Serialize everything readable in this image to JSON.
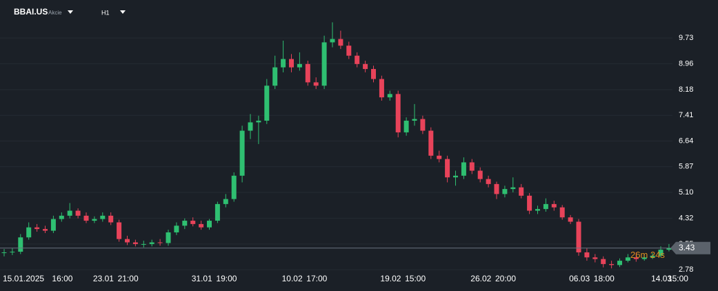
{
  "header": {
    "symbol": "BBAI.US",
    "market": "Akcie",
    "timeframe": "H1"
  },
  "chart_data": {
    "type": "candlestick",
    "categories": [
      "15.01.2025",
      null,
      null,
      null,
      null,
      null,
      "16:00",
      null,
      null,
      null,
      null,
      "23.01",
      null,
      null,
      "21:00",
      null,
      null,
      null,
      null,
      null,
      null,
      null,
      null,
      "31.01",
      null,
      null,
      "19:00",
      null,
      null,
      null,
      null,
      null,
      null,
      null,
      "10.02",
      null,
      null,
      "17:00",
      null,
      null,
      null,
      null,
      null,
      null,
      null,
      null,
      "19.02",
      null,
      null,
      "15:00",
      null,
      null,
      null,
      null,
      null,
      null,
      null,
      "26.02",
      null,
      null,
      "20:00",
      null,
      null,
      null,
      null,
      null,
      null,
      null,
      null,
      "06.03",
      null,
      null,
      "18:00",
      null,
      null,
      null,
      null,
      null,
      null,
      "14.03",
      null,
      "15:00"
    ],
    "open": [
      3.28,
      3.3,
      3.32,
      3.75,
      4.05,
      4.0,
      3.95,
      4.3,
      4.4,
      4.55,
      4.4,
      4.25,
      4.3,
      4.4,
      4.2,
      3.7,
      3.6,
      3.55,
      3.55,
      3.6,
      3.58,
      3.9,
      4.1,
      4.25,
      4.15,
      4.05,
      4.25,
      4.75,
      4.9,
      5.6,
      6.95,
      7.2,
      7.25,
      8.3,
      8.85,
      9.1,
      8.85,
      8.95,
      8.4,
      8.3,
      9.6,
      9.7,
      9.5,
      9.2,
      8.95,
      8.8,
      8.5,
      7.95,
      8.05,
      6.9,
      7.25,
      7.3,
      6.95,
      6.2,
      6.1,
      5.55,
      5.6,
      6.0,
      5.75,
      5.5,
      5.35,
      5.05,
      5.2,
      5.25,
      5.0,
      4.55,
      4.6,
      4.75,
      4.65,
      4.35,
      4.22,
      3.3,
      3.15,
      3.1,
      2.95,
      2.92,
      3.05,
      3.15,
      3.1,
      3.15,
      3.2,
      3.38
    ],
    "high": [
      3.4,
      3.42,
      3.85,
      4.2,
      4.15,
      4.1,
      4.4,
      4.5,
      4.78,
      4.62,
      4.5,
      4.38,
      4.5,
      4.5,
      4.28,
      3.8,
      3.68,
      3.65,
      3.68,
      3.7,
      3.98,
      4.2,
      4.32,
      4.35,
      4.25,
      4.3,
      4.82,
      5.05,
      5.7,
      7.1,
      7.45,
      7.4,
      8.5,
      9.2,
      9.65,
      9.25,
      9.3,
      9.05,
      8.55,
      9.8,
      10.2,
      9.95,
      9.62,
      9.3,
      9.05,
      8.9,
      8.6,
      8.15,
      8.15,
      7.35,
      7.75,
      7.4,
      7.05,
      6.35,
      6.2,
      5.75,
      6.15,
      6.1,
      5.85,
      5.6,
      5.42,
      5.3,
      5.55,
      5.35,
      5.08,
      4.7,
      4.92,
      4.85,
      4.72,
      4.42,
      4.3,
      3.42,
      3.25,
      3.18,
      3.05,
      3.12,
      3.25,
      3.3,
      3.25,
      3.28,
      3.48,
      3.55
    ],
    "low": [
      3.18,
      3.22,
      3.25,
      3.68,
      3.92,
      3.88,
      3.88,
      4.22,
      4.32,
      4.32,
      4.18,
      4.18,
      4.22,
      4.12,
      3.62,
      3.52,
      3.48,
      3.45,
      3.48,
      3.5,
      3.5,
      3.82,
      4.0,
      4.08,
      3.98,
      3.98,
      4.18,
      4.65,
      4.82,
      5.4,
      6.7,
      6.55,
      7.15,
      8.2,
      8.7,
      8.7,
      8.75,
      8.3,
      8.2,
      8.2,
      9.45,
      9.4,
      9.1,
      8.85,
      8.7,
      8.4,
      7.85,
      7.85,
      6.75,
      6.8,
      7.1,
      6.85,
      6.1,
      6.0,
      5.4,
      5.3,
      5.5,
      5.65,
      5.4,
      5.25,
      4.9,
      4.95,
      5.1,
      4.92,
      4.45,
      4.45,
      4.52,
      4.55,
      4.28,
      4.15,
      3.2,
      3.05,
      3.0,
      2.85,
      2.82,
      2.86,
      3.0,
      3.02,
      3.05,
      3.1,
      3.15,
      3.33
    ],
    "close": [
      3.3,
      3.32,
      3.75,
      4.05,
      4.0,
      3.95,
      4.3,
      4.4,
      4.55,
      4.4,
      4.25,
      4.3,
      4.4,
      4.2,
      3.7,
      3.6,
      3.55,
      3.55,
      3.6,
      3.58,
      3.9,
      4.1,
      4.25,
      4.15,
      4.05,
      4.25,
      4.75,
      4.9,
      5.6,
      6.95,
      7.2,
      7.25,
      8.3,
      8.85,
      9.1,
      8.85,
      8.95,
      8.4,
      8.3,
      9.6,
      9.7,
      9.5,
      9.2,
      8.95,
      8.8,
      8.5,
      7.95,
      8.05,
      6.9,
      7.25,
      7.3,
      6.95,
      6.2,
      6.1,
      5.55,
      5.6,
      6.0,
      5.75,
      5.5,
      5.35,
      5.05,
      5.2,
      5.25,
      5.0,
      4.55,
      4.6,
      4.75,
      4.65,
      4.35,
      4.22,
      3.3,
      3.15,
      3.1,
      2.95,
      2.92,
      3.05,
      3.15,
      3.1,
      3.15,
      3.2,
      3.38,
      3.43
    ],
    "up_color": "#2fbf71",
    "down_color": "#e8435a",
    "ylim": [
      2.7,
      10.87
    ],
    "yticks": [
      2.78,
      3.55,
      4.32,
      {
        "value": 5.1,
        "label": "5.10"
      },
      5.87,
      6.64,
      7.41,
      8.18,
      8.96,
      9.73
    ],
    "grid": true,
    "last_price": 3.43,
    "countdown": "26m 24s"
  }
}
